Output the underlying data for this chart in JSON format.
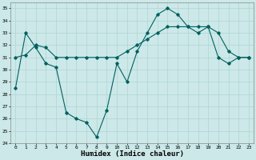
{
  "title": "",
  "xlabel": "Humidex (Indice chaleur)",
  "ylabel": "",
  "xlim": [
    -0.5,
    23.5
  ],
  "ylim": [
    24,
    35.5
  ],
  "yticks": [
    24,
    25,
    26,
    27,
    28,
    29,
    30,
    31,
    32,
    33,
    34,
    35
  ],
  "xticks": [
    0,
    1,
    2,
    3,
    4,
    5,
    6,
    7,
    8,
    9,
    10,
    11,
    12,
    13,
    14,
    15,
    16,
    17,
    18,
    19,
    20,
    21,
    22,
    23
  ],
  "background_color": "#cce8e8",
  "grid_color": "#b0d4d4",
  "line_color": "#006060",
  "line1_y": [
    28.5,
    33.0,
    31.8,
    30.5,
    30.2,
    26.5,
    26.0,
    25.7,
    24.5,
    26.7,
    30.5,
    29.0,
    31.5,
    33.0,
    34.5,
    35.0,
    34.5,
    33.5,
    33.0,
    33.5,
    31.0,
    30.5,
    31.0,
    31.0
  ],
  "line2_y": [
    31.0,
    31.2,
    32.0,
    31.8,
    31.0,
    31.0,
    31.0,
    31.0,
    31.0,
    31.0,
    31.0,
    31.5,
    32.0,
    32.5,
    33.0,
    33.5,
    33.5,
    33.5,
    33.5,
    33.5,
    33.0,
    31.5,
    31.0,
    31.0
  ],
  "marker": "D",
  "markersize": 1.8,
  "linewidth": 0.8,
  "tick_fontsize": 4.5,
  "xlabel_fontsize": 6.5
}
